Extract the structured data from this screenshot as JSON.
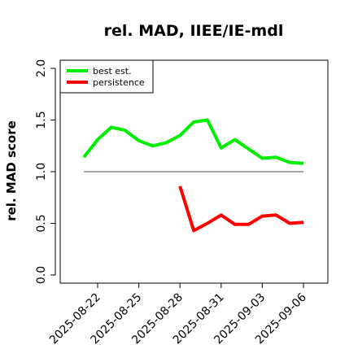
{
  "chart_data": {
    "type": "line",
    "title": "rel. MAD, IIEE/IE-mdl",
    "xlabel": "",
    "ylabel": "rel. MAD score",
    "ylim": [
      0.0,
      2.0
    ],
    "y_ticks": [
      "0.0",
      "0.5",
      "1.0",
      "1.5",
      "2.0"
    ],
    "x_ticks": [
      "2025-08-22",
      "2025-08-25",
      "2025-08-28",
      "2025-08-31",
      "2025-09-03",
      "2025-09-06"
    ],
    "reference_line": 1.0,
    "legend_position": "top-left",
    "series": [
      {
        "name": "best est.",
        "color": "#00ee00",
        "x": [
          "2025-08-21",
          "2025-08-22",
          "2025-08-23",
          "2025-08-24",
          "2025-08-25",
          "2025-08-26",
          "2025-08-27",
          "2025-08-28",
          "2025-08-29",
          "2025-08-30",
          "2025-08-31",
          "2025-09-01",
          "2025-09-02",
          "2025-09-03",
          "2025-09-04",
          "2025-09-05",
          "2025-09-06"
        ],
        "values": [
          1.14,
          1.31,
          1.43,
          1.4,
          1.3,
          1.25,
          1.28,
          1.35,
          1.48,
          1.5,
          1.23,
          1.31,
          1.22,
          1.13,
          1.14,
          1.09,
          1.08
        ]
      },
      {
        "name": "persistence",
        "color": "#ff0000",
        "x": [
          "2025-08-28",
          "2025-08-29",
          "2025-08-30",
          "2025-08-31",
          "2025-09-01",
          "2025-09-02",
          "2025-09-03",
          "2025-09-04",
          "2025-09-05",
          "2025-09-06"
        ],
        "values": [
          0.86,
          0.43,
          0.5,
          0.58,
          0.49,
          0.49,
          0.57,
          0.58,
          0.5,
          0.51
        ]
      }
    ]
  }
}
